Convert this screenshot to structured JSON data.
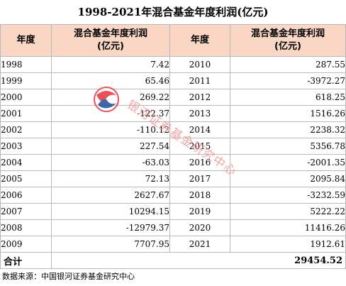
{
  "title": "1998-2021年混合基金年度利润(亿元)",
  "headers": {
    "year": "年度",
    "profit": "混合基金年度利润\n(亿元)"
  },
  "left": [
    {
      "year": "1998",
      "value": "7.42"
    },
    {
      "year": "1999",
      "value": "65.46"
    },
    {
      "year": "2000",
      "value": "269.22"
    },
    {
      "year": "2001",
      "value": "-122.37"
    },
    {
      "year": "2002",
      "value": "-110.12"
    },
    {
      "year": "2003",
      "value": "227.54"
    },
    {
      "year": "2004",
      "value": "-63.03"
    },
    {
      "year": "2005",
      "value": "72.13"
    },
    {
      "year": "2006",
      "value": "2627.67"
    },
    {
      "year": "2007",
      "value": "10294.15"
    },
    {
      "year": "2008",
      "value": "-12979.37"
    },
    {
      "year": "2009",
      "value": "7707.95"
    }
  ],
  "right": [
    {
      "year": "2010",
      "value": "287.55"
    },
    {
      "year": "2011",
      "value": "-3972.27"
    },
    {
      "year": "2012",
      "value": "618.25"
    },
    {
      "year": "2013",
      "value": "1516.26"
    },
    {
      "year": "2014",
      "value": "2238.32"
    },
    {
      "year": "2015",
      "value": "5356.78"
    },
    {
      "year": "2016",
      "value": "-2001.35"
    },
    {
      "year": "2017",
      "value": "2095.84"
    },
    {
      "year": "2018",
      "value": "-3232.59"
    },
    {
      "year": "2019",
      "value": "5222.22"
    },
    {
      "year": "2020",
      "value": "11416.26"
    },
    {
      "year": "2021",
      "value": "1912.61"
    }
  ],
  "total": {
    "label": "合计",
    "value": "29454.52"
  },
  "source": "数据来源：中国银河证券基金研究中心",
  "watermark": {
    "text": "银河证券基金研究中心",
    "colors": {
      "red": "#e8343a",
      "blue": "#1f4e9c",
      "text": "#f08a8a"
    }
  },
  "colors": {
    "header_bg": "#f9d7c4",
    "border": "#b8b8b8"
  }
}
